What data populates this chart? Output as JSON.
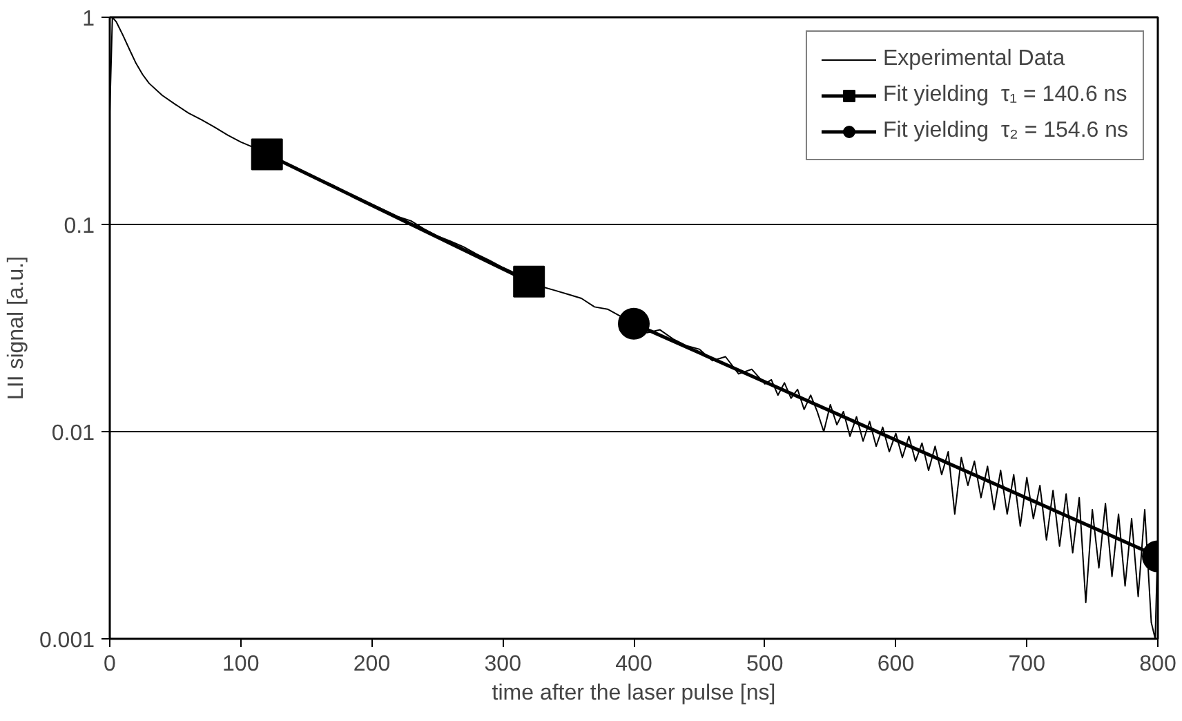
{
  "chart_data": {
    "type": "line",
    "xlabel": "time after the laser pulse [ns]",
    "ylabel": "LII signal [a.u.]",
    "xlim": [
      0,
      800
    ],
    "xticks": [
      0,
      100,
      200,
      300,
      400,
      500,
      600,
      700,
      800
    ],
    "ylim": [
      0.001,
      1
    ],
    "yticks": [
      {
        "value": 0.001,
        "label": "0.001"
      },
      {
        "value": 0.01,
        "label": "0.01"
      },
      {
        "value": 0.1,
        "label": "0.1"
      },
      {
        "value": 1,
        "label": "1"
      }
    ],
    "log": "y",
    "grid": "y",
    "legend": "top right",
    "series": [
      {
        "name": "Experimental Data",
        "color": "#000000",
        "marker": "none",
        "x": [
          0,
          2,
          5,
          10,
          15,
          20,
          25,
          30,
          40,
          50,
          60,
          70,
          80,
          90,
          100,
          110,
          120,
          130,
          140,
          150,
          160,
          170,
          180,
          190,
          200,
          210,
          220,
          230,
          240,
          250,
          260,
          270,
          280,
          290,
          300,
          310,
          320,
          330,
          340,
          350,
          360,
          370,
          380,
          390,
          400,
          410,
          420,
          430,
          440,
          450,
          460,
          470,
          480,
          490,
          500,
          505,
          510,
          515,
          520,
          525,
          530,
          535,
          540,
          545,
          550,
          555,
          560,
          565,
          570,
          575,
          580,
          585,
          590,
          595,
          600,
          605,
          610,
          615,
          620,
          625,
          630,
          635,
          640,
          645,
          650,
          655,
          660,
          665,
          670,
          675,
          680,
          685,
          690,
          695,
          700,
          705,
          710,
          715,
          720,
          725,
          730,
          735,
          740,
          745,
          750,
          755,
          760,
          765,
          770,
          775,
          780,
          785,
          790,
          795,
          798,
          800
        ],
        "values": [
          0.35,
          1.0,
          0.95,
          0.82,
          0.7,
          0.6,
          0.53,
          0.48,
          0.42,
          0.38,
          0.345,
          0.32,
          0.295,
          0.27,
          0.25,
          0.235,
          0.22,
          0.204,
          0.191,
          0.178,
          0.165,
          0.155,
          0.143,
          0.134,
          0.125,
          0.117,
          0.109,
          0.104,
          0.095,
          0.088,
          0.083,
          0.078,
          0.072,
          0.067,
          0.062,
          0.058,
          0.054,
          0.05,
          0.048,
          0.046,
          0.044,
          0.04,
          0.039,
          0.036,
          0.034,
          0.03,
          0.031,
          0.028,
          0.026,
          0.025,
          0.022,
          0.023,
          0.019,
          0.02,
          0.017,
          0.0178,
          0.015,
          0.0172,
          0.0145,
          0.016,
          0.0128,
          0.015,
          0.0125,
          0.01,
          0.0135,
          0.0108,
          0.0125,
          0.0095,
          0.0118,
          0.009,
          0.0112,
          0.0085,
          0.0105,
          0.008,
          0.0098,
          0.0075,
          0.0095,
          0.0072,
          0.0088,
          0.0065,
          0.0085,
          0.0062,
          0.008,
          0.004,
          0.0075,
          0.0055,
          0.0072,
          0.0048,
          0.0068,
          0.0042,
          0.0065,
          0.004,
          0.0062,
          0.0035,
          0.006,
          0.0038,
          0.0055,
          0.003,
          0.0052,
          0.0028,
          0.005,
          0.0026,
          0.0048,
          0.0015,
          0.0042,
          0.0022,
          0.0045,
          0.002,
          0.004,
          0.0018,
          0.0038,
          0.0016,
          0.0042,
          0.0012,
          0.001,
          0.003
        ]
      },
      {
        "name": "Fit yielding  τ₁ = 140.6 ns",
        "color": "#000000",
        "marker": "square",
        "x": [
          120,
          320
        ],
        "values": [
          0.218,
          0.053
        ]
      },
      {
        "name": "Fit yielding  τ₂ = 154.6 ns",
        "color": "#000000",
        "marker": "circle",
        "x": [
          400,
          800
        ],
        "values": [
          0.0332,
          0.0025
        ]
      }
    ]
  }
}
